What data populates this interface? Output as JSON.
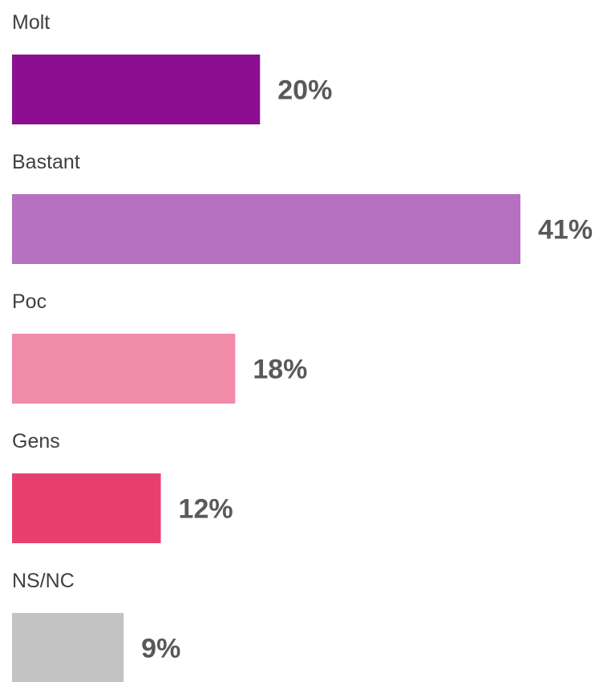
{
  "chart_data": {
    "type": "bar",
    "orientation": "horizontal",
    "categories": [
      "Molt",
      "Bastant",
      "Poc",
      "Gens",
      "NS/NC"
    ],
    "values": [
      20,
      41,
      18,
      12,
      9
    ],
    "value_labels": [
      "20%",
      "41%",
      "18%",
      "12%",
      "9%"
    ],
    "colors": [
      "#8B0F8F",
      "#B570BF",
      "#F08BA8",
      "#E8406D",
      "#C3C3C3"
    ],
    "unit": "%",
    "title": "",
    "xlabel": "",
    "ylabel": "",
    "xlim": [
      0,
      41
    ],
    "grid": false,
    "legend": "none"
  }
}
